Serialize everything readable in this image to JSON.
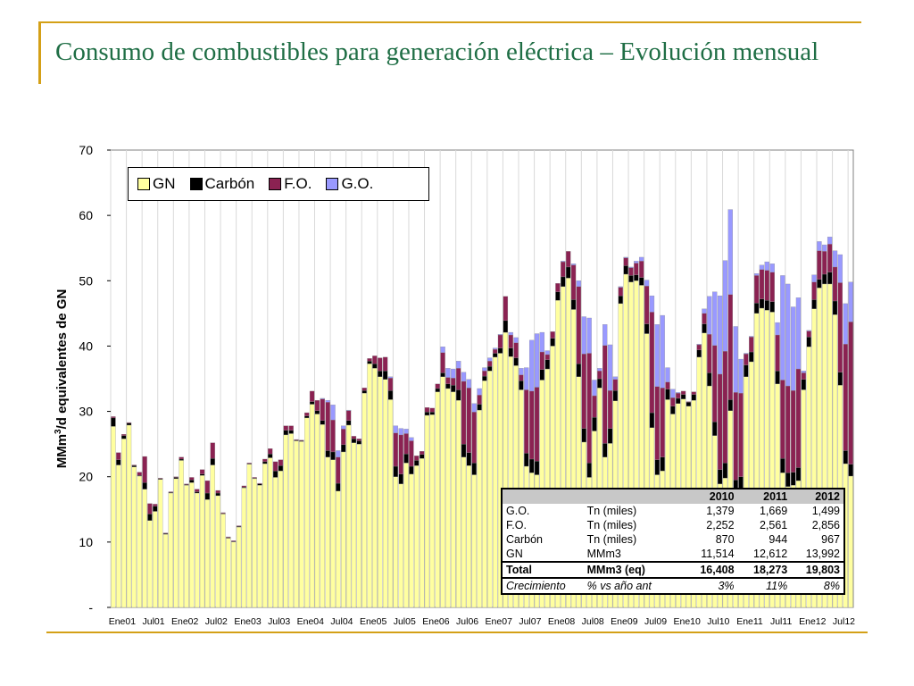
{
  "slide": {
    "title": "Consumo de combustibles para generación eléctrica – Evolución mensual"
  },
  "colors": {
    "GN": "#ffffa0",
    "Carbón": "#000000",
    "F.O.": "#8b2252",
    "G.O.": "#9999ff"
  },
  "chart_data": {
    "type": "bar",
    "stacked": true,
    "ylabel": "MMm³/d equivalentes de GN",
    "ylabel_parts": {
      "pre": "MMm",
      "sup": "3",
      "post": "/d equivalentes de GN"
    },
    "ylim": [
      0,
      70
    ],
    "yticks": [
      {
        "value": 0,
        "label": "-"
      },
      {
        "value": 10,
        "label": "10"
      },
      {
        "value": 20,
        "label": "20"
      },
      {
        "value": 30,
        "label": "30"
      },
      {
        "value": 40,
        "label": "40"
      },
      {
        "value": 50,
        "label": "50"
      },
      {
        "value": 60,
        "label": "60"
      },
      {
        "value": 70,
        "label": "70"
      }
    ],
    "grid": "vertical",
    "legend_position": "top-left",
    "xtick_labels": [
      "Ene01",
      "Jul01",
      "Ene02",
      "Jul02",
      "Ene03",
      "Jul03",
      "Ene04",
      "Jul04",
      "Ene05",
      "Jul05",
      "Ene06",
      "Jul06",
      "Ene07",
      "Jul07",
      "Ene08",
      "Jul08",
      "Ene09",
      "Jul09",
      "Ene10",
      "Jul10",
      "Ene11",
      "Jul11",
      "Ene12",
      "Jul12"
    ],
    "categories": [
      "2001-01",
      "2001-02",
      "2001-03",
      "2001-04",
      "2001-05",
      "2001-06",
      "2001-07",
      "2001-08",
      "2001-09",
      "2001-10",
      "2001-11",
      "2001-12",
      "2002-01",
      "2002-02",
      "2002-03",
      "2002-04",
      "2002-05",
      "2002-06",
      "2002-07",
      "2002-08",
      "2002-09",
      "2002-10",
      "2002-11",
      "2002-12",
      "2003-01",
      "2003-02",
      "2003-03",
      "2003-04",
      "2003-05",
      "2003-06",
      "2003-07",
      "2003-08",
      "2003-09",
      "2003-10",
      "2003-11",
      "2003-12",
      "2004-01",
      "2004-02",
      "2004-03",
      "2004-04",
      "2004-05",
      "2004-06",
      "2004-07",
      "2004-08",
      "2004-09",
      "2004-10",
      "2004-11",
      "2004-12",
      "2005-01",
      "2005-02",
      "2005-03",
      "2005-04",
      "2005-05",
      "2005-06",
      "2005-07",
      "2005-08",
      "2005-09",
      "2005-10",
      "2005-11",
      "2005-12",
      "2006-01",
      "2006-02",
      "2006-03",
      "2006-04",
      "2006-05",
      "2006-06",
      "2006-07",
      "2006-08",
      "2006-09",
      "2006-10",
      "2006-11",
      "2006-12",
      "2007-01",
      "2007-02",
      "2007-03",
      "2007-04",
      "2007-05",
      "2007-06",
      "2007-07",
      "2007-08",
      "2007-09",
      "2007-10",
      "2007-11",
      "2007-12",
      "2008-01",
      "2008-02",
      "2008-03",
      "2008-04",
      "2008-05",
      "2008-06",
      "2008-07",
      "2008-08",
      "2008-09",
      "2008-10",
      "2008-11",
      "2008-12",
      "2009-01",
      "2009-02",
      "2009-03",
      "2009-04",
      "2009-05",
      "2009-06",
      "2009-07",
      "2009-08",
      "2009-09",
      "2009-10",
      "2009-11",
      "2009-12",
      "2010-01",
      "2010-02",
      "2010-03",
      "2010-04",
      "2010-05",
      "2010-06",
      "2010-07",
      "2010-08",
      "2010-09",
      "2010-10",
      "2010-11",
      "2010-12",
      "2011-01",
      "2011-02",
      "2011-03",
      "2011-04",
      "2011-05",
      "2011-06",
      "2011-07",
      "2011-08",
      "2011-09",
      "2011-10",
      "2011-11",
      "2011-12",
      "2012-01",
      "2012-02",
      "2012-03",
      "2012-04",
      "2012-05",
      "2012-06",
      "2012-07",
      "2012-08",
      "2012-09",
      "2012-10"
    ],
    "series": [
      {
        "name": "GN",
        "values": [
          27.7,
          21.8,
          25.8,
          27.9,
          21.5,
          20.1,
          18.1,
          13.3,
          14.7,
          19.6,
          11.2,
          17.5,
          19.7,
          22.5,
          18.7,
          19.1,
          17.5,
          20.2,
          16.5,
          21.8,
          17.1,
          14.3,
          10.6,
          10.0,
          12.3,
          18.3,
          21.9,
          19.7,
          18.7,
          22.0,
          22.9,
          19.9,
          20.9,
          26.4,
          26.6,
          25.5,
          25.4,
          29.0,
          31.1,
          29.6,
          28.0,
          23.0,
          22.6,
          17.8,
          23.8,
          27.9,
          25.2,
          25.0,
          32.8,
          37.3,
          36.6,
          35.3,
          34.9,
          31.8,
          20.0,
          18.9,
          22.1,
          20.4,
          21.7,
          22.8,
          29.4,
          29.5,
          33.0,
          35.3,
          33.5,
          33.0,
          31.7,
          23.0,
          21.7,
          20.3,
          30.2,
          34.7,
          36.2,
          38.3,
          38.9,
          42.1,
          38.4,
          37.0,
          33.3,
          21.6,
          20.6,
          20.3,
          34.8,
          36.5,
          40.0,
          47.0,
          49.1,
          50.4,
          45.6,
          35.3,
          25.3,
          19.9,
          27.0,
          33.6,
          23.0,
          25.1,
          31.6,
          46.5,
          51.0,
          49.8,
          50.0,
          49.3,
          41.9,
          27.5,
          20.3,
          20.9,
          31.8,
          29.6,
          31.2,
          31.9,
          30.8,
          31.7,
          38.3,
          42.0,
          33.9,
          26.3,
          18.9,
          19.8,
          30.1,
          17.3,
          17.9,
          35.3,
          37.6,
          45.0,
          45.8,
          45.5,
          45.2,
          34.2,
          20.6,
          18.5,
          18.7,
          19.4,
          33.3,
          39.9,
          45.7,
          48.9,
          49.5,
          49.5,
          44.8,
          34.0,
          22.0,
          20.1
        ],
        "_note": ""
      },
      {
        "name": "Carbón",
        "values": [
          1.3,
          0.8,
          0.5,
          0.3,
          0.2,
          0.1,
          1.0,
          1.0,
          0.8,
          0.1,
          0.1,
          0.1,
          0.2,
          0.2,
          0.1,
          0.4,
          0.2,
          0.2,
          1.0,
          1.0,
          0.4,
          0.1,
          0.1,
          0.1,
          0.1,
          0.1,
          0.1,
          0.1,
          0.2,
          0.3,
          0.6,
          1.0,
          0.8,
          0.7,
          0.5,
          0.1,
          0.1,
          0.3,
          0.4,
          0.5,
          0.6,
          1.0,
          1.2,
          1.2,
          1.1,
          0.7,
          0.6,
          0.5,
          0.4,
          0.4,
          0.7,
          0.9,
          1.3,
          1.4,
          1.6,
          1.5,
          1.4,
          1.2,
          0.8,
          0.6,
          0.5,
          0.4,
          0.5,
          0.6,
          0.7,
          1.0,
          1.6,
          2.0,
          2.0,
          1.8,
          0.9,
          0.7,
          0.7,
          0.6,
          0.8,
          1.8,
          1.3,
          1.2,
          1.4,
          2.0,
          2.1,
          2.1,
          1.6,
          1.4,
          1.2,
          1.3,
          1.5,
          1.7,
          1.5,
          2.0,
          2.1,
          2.2,
          2.1,
          1.4,
          2.1,
          2.3,
          1.6,
          1.2,
          1.3,
          1.0,
          0.9,
          1.2,
          1.5,
          2.3,
          2.3,
          2.1,
          1.6,
          1.2,
          0.8,
          0.7,
          0.6,
          0.9,
          1.1,
          1.4,
          2.0,
          2.1,
          2.2,
          2.3,
          1.7,
          2.2,
          2.1,
          1.8,
          1.5,
          1.6,
          1.4,
          1.5,
          1.6,
          2.0,
          2.2,
          2.1,
          2.0,
          2.0,
          1.6,
          1.5,
          1.4,
          1.3,
          1.5,
          1.8,
          2.1,
          2.0,
          2.0,
          1.8
        ],
        "_note": ""
      },
      {
        "name": "F.O.",
        "values": [
          0.2,
          1.1,
          0.2,
          0.1,
          0.1,
          0.5,
          4.0,
          1.6,
          0.3,
          0.1,
          0.1,
          0.1,
          0.1,
          0.3,
          0.1,
          0.4,
          0.4,
          0.7,
          1.9,
          2.4,
          0.4,
          0.1,
          0.1,
          0.1,
          0.1,
          0.2,
          0.1,
          0.1,
          0.1,
          0.4,
          0.8,
          1.4,
          0.9,
          0.7,
          0.7,
          0.1,
          0.1,
          0.5,
          1.6,
          1.6,
          3.3,
          7.4,
          4.9,
          4.0,
          2.4,
          1.5,
          0.4,
          0.3,
          0.4,
          0.4,
          1.2,
          2.0,
          2.1,
          1.9,
          5.1,
          6.0,
          3.1,
          3.9,
          0.7,
          0.5,
          0.7,
          0.6,
          0.7,
          3.1,
          1.0,
          1.1,
          3.3,
          9.6,
          9.9,
          7.8,
          1.4,
          0.8,
          0.8,
          0.6,
          2.0,
          3.7,
          2.0,
          2.3,
          0.9,
          9.7,
          10.4,
          11.3,
          2.7,
          0.8,
          1.0,
          1.3,
          2.3,
          2.4,
          5.3,
          11.8,
          11.4,
          16.8,
          3.3,
          1.2,
          15.0,
          5.8,
          1.7,
          1.3,
          1.2,
          1.2,
          1.8,
          2.5,
          5.8,
          15.4,
          11.2,
          10.6,
          1.1,
          1.3,
          0.8,
          0.5,
          0.1,
          0.4,
          0.8,
          1.6,
          5.9,
          11.7,
          14.6,
          17.1,
          16.1,
          13.4,
          12.8,
          1.7,
          2.3,
          4.2,
          4.5,
          4.6,
          4.5,
          5.5,
          12.0,
          13.3,
          12.5,
          15.1,
          1.0,
          0.9,
          2.7,
          4.4,
          3.5,
          4.3,
          5.2,
          13.7,
          16.3,
          21.8
        ],
        "_note": ""
      },
      {
        "name": "G.O.",
        "values": [
          0.0,
          0.0,
          0.0,
          0.0,
          0.0,
          0.0,
          0.0,
          0.0,
          0.0,
          0.0,
          0.0,
          0.0,
          0.0,
          0.0,
          0.0,
          0.0,
          0.0,
          0.0,
          0.0,
          0.0,
          0.0,
          0.0,
          0.0,
          0.0,
          0.0,
          0.0,
          0.0,
          0.0,
          0.0,
          0.0,
          0.0,
          0.0,
          0.0,
          0.0,
          0.0,
          0.0,
          0.0,
          0.0,
          0.0,
          0.0,
          0.1,
          0.3,
          2.3,
          1.0,
          0.5,
          0.1,
          0.0,
          0.0,
          0.0,
          0.0,
          0.0,
          0.0,
          0.0,
          0.2,
          1.1,
          1.0,
          0.7,
          0.5,
          0.0,
          0.0,
          0.0,
          0.0,
          0.0,
          0.9,
          1.4,
          1.4,
          1.1,
          1.4,
          1.3,
          1.3,
          1.0,
          0.5,
          0.5,
          0.2,
          0.1,
          0.0,
          0.4,
          0.8,
          1.0,
          3.4,
          7.8,
          8.2,
          3.0,
          0.6,
          0.0,
          0.0,
          0.1,
          0.0,
          0.2,
          0.9,
          5.7,
          5.4,
          2.4,
          0.4,
          3.2,
          7.0,
          0.4,
          0.1,
          0.1,
          0.1,
          0.3,
          0.6,
          0.9,
          2.5,
          9.5,
          11.1,
          2.2,
          1.3,
          0.1,
          0.0,
          0.0,
          0.0,
          0.1,
          0.7,
          5.8,
          8.2,
          12.0,
          13.9,
          13.0,
          10.1,
          5.2,
          0.1,
          0.1,
          0.3,
          0.7,
          1.3,
          1.3,
          1.9,
          16.0,
          15.6,
          12.8,
          10.9,
          0.3,
          0.1,
          1.1,
          1.4,
          1.0,
          1.1,
          2.5,
          4.3,
          6.2,
          6.1
        ],
        "_note": ""
      }
    ]
  },
  "legend": {
    "items": [
      {
        "label": "GN",
        "color": "#ffffa0"
      },
      {
        "label": "Carbón",
        "color": "#000000"
      },
      {
        "label": "F.O.",
        "color": "#8b2252"
      },
      {
        "label": "G.O.",
        "color": "#9999ff"
      }
    ]
  },
  "table": {
    "header": [
      "",
      "",
      "2010",
      "2011",
      "2012"
    ],
    "rows": [
      [
        "G.O.",
        "Tn (miles)",
        "1,379",
        "1,669",
        "1,499"
      ],
      [
        "F.O.",
        "Tn (miles)",
        "2,252",
        "2,561",
        "2,856"
      ],
      [
        "Carbón",
        "Tn (miles)",
        "870",
        "944",
        "967"
      ],
      [
        "GN",
        "MMm3",
        "11,514",
        "12,612",
        "13,992"
      ]
    ],
    "total": [
      "Total",
      "MMm3 (eq)",
      "16,408",
      "18,273",
      "19,803"
    ],
    "growth": [
      "Crecimiento",
      "% vs año ant",
      "3%",
      "11%",
      "8%"
    ]
  }
}
